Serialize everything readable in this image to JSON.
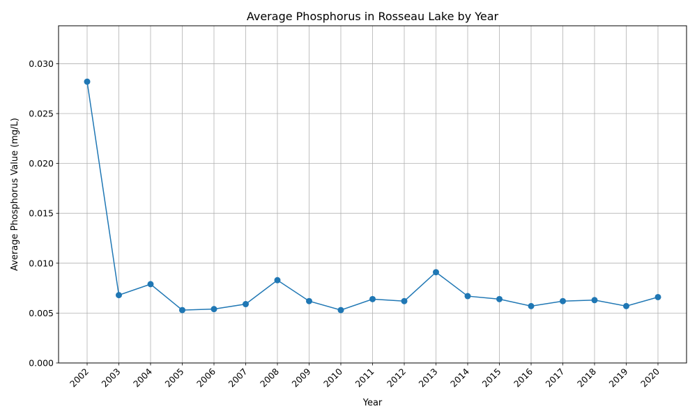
{
  "chart_data": {
    "type": "line",
    "title": "Average Phosphorus in Rosseau Lake by Year",
    "xlabel": "Year",
    "ylabel": "Average Phosphorus Value (mg/L)",
    "ylim": [
      0,
      0.0338
    ],
    "yticks": [
      "0.000",
      "0.005",
      "0.010",
      "0.015",
      "0.020",
      "0.025",
      "0.030"
    ],
    "grid": true,
    "x": [
      "2002",
      "2003",
      "2004",
      "2005",
      "2006",
      "2007",
      "2008",
      "2009",
      "2010",
      "2011",
      "2012",
      "2013",
      "2014",
      "2015",
      "2016",
      "2017",
      "2018",
      "2019",
      "2020"
    ],
    "series": [
      {
        "values": [
          0.0282,
          0.0068,
          0.0079,
          0.0053,
          0.0054,
          0.0059,
          0.0083,
          0.0062,
          0.0053,
          0.0064,
          0.0062,
          0.0091,
          0.0067,
          0.0064,
          0.0057,
          0.0062,
          0.0063,
          0.0057,
          0.0066
        ],
        "color": "#1f77b4"
      }
    ]
  }
}
